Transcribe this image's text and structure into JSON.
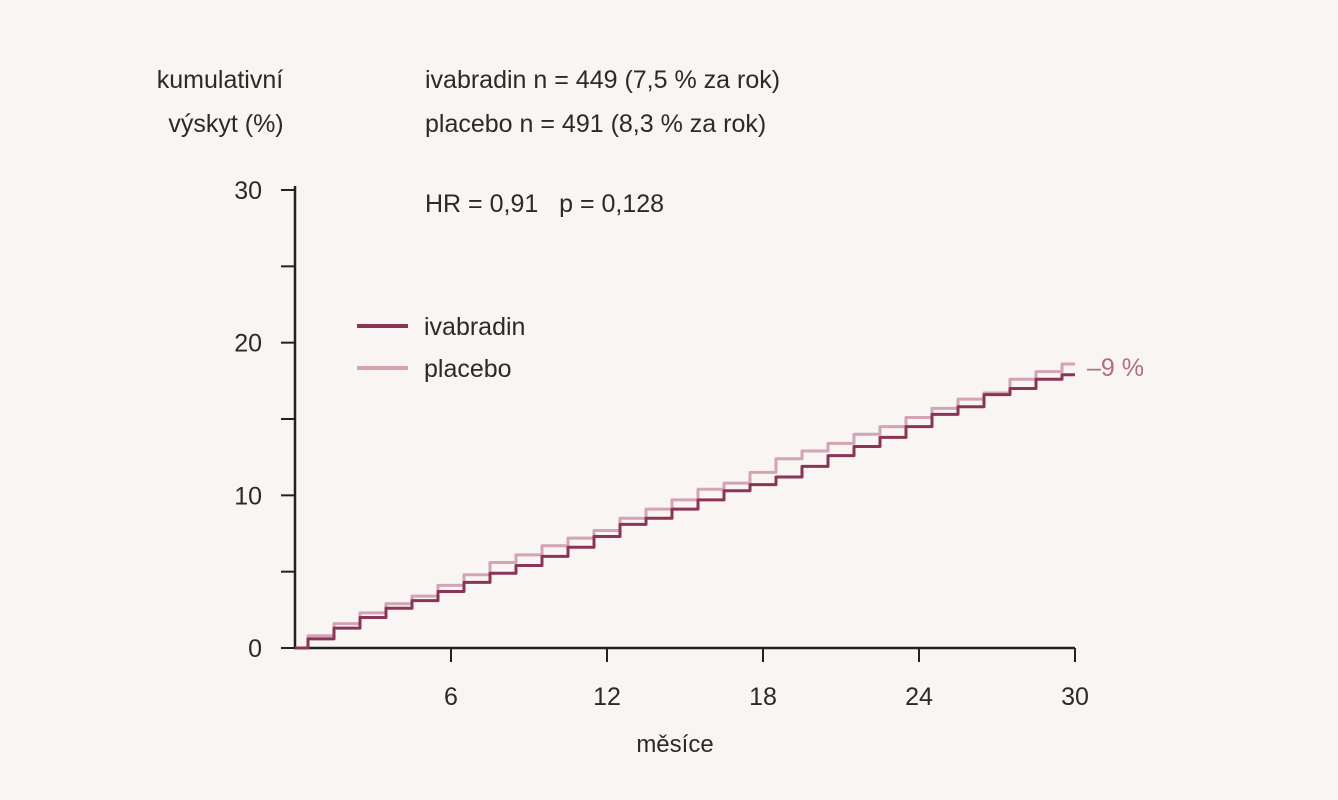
{
  "chart_data": {
    "type": "line",
    "ylabel_lines": [
      "kumulativní",
      "výskyt (%)"
    ],
    "xlabel": "měsíce",
    "header_lines": [
      "ivabradin n = 449 (7,5 % za rok)",
      "placebo n = 491 (8,3 % za rok)"
    ],
    "stat_annotation": "HR = 0,91   p = 0,128",
    "end_annotation": "–9 %",
    "xlim": [
      0,
      30
    ],
    "ylim": [
      0,
      30
    ],
    "x_ticks": [
      6,
      12,
      18,
      24,
      30
    ],
    "y_tick_labels": [
      0,
      10,
      20,
      30
    ],
    "y_minor_ticks": [
      5,
      15,
      25
    ],
    "legend_position": "upper-left",
    "series": [
      {
        "name": "ivabradin",
        "color": "#8a3457",
        "x": [
          0,
          1,
          2,
          3,
          4,
          5,
          6,
          7,
          8,
          9,
          10,
          11,
          12,
          13,
          14,
          15,
          16,
          17,
          18,
          19,
          20,
          21,
          22,
          23,
          24,
          25,
          26,
          27,
          28,
          29,
          30
        ],
        "y": [
          0,
          0.6,
          1.3,
          2.0,
          2.6,
          3.1,
          3.7,
          4.3,
          4.9,
          5.4,
          6.0,
          6.6,
          7.3,
          8.1,
          8.5,
          9.1,
          9.7,
          10.3,
          10.7,
          11.2,
          11.9,
          12.6,
          13.2,
          13.8,
          14.5,
          15.3,
          15.8,
          16.6,
          17.0,
          17.6,
          17.9
        ]
      },
      {
        "name": "placebo",
        "color": "#d2a4b6",
        "x": [
          0,
          1,
          2,
          3,
          4,
          5,
          6,
          7,
          8,
          9,
          10,
          11,
          12,
          13,
          14,
          15,
          16,
          17,
          18,
          19,
          20,
          21,
          22,
          23,
          24,
          25,
          26,
          27,
          28,
          29,
          30
        ],
        "y": [
          0,
          0.8,
          1.6,
          2.3,
          2.9,
          3.4,
          4.1,
          4.8,
          5.6,
          6.1,
          6.7,
          7.2,
          7.7,
          8.5,
          9.1,
          9.7,
          10.4,
          10.8,
          11.5,
          12.4,
          12.9,
          13.4,
          14.0,
          14.5,
          15.1,
          15.7,
          16.3,
          16.7,
          17.6,
          18.1,
          18.6
        ]
      }
    ]
  }
}
